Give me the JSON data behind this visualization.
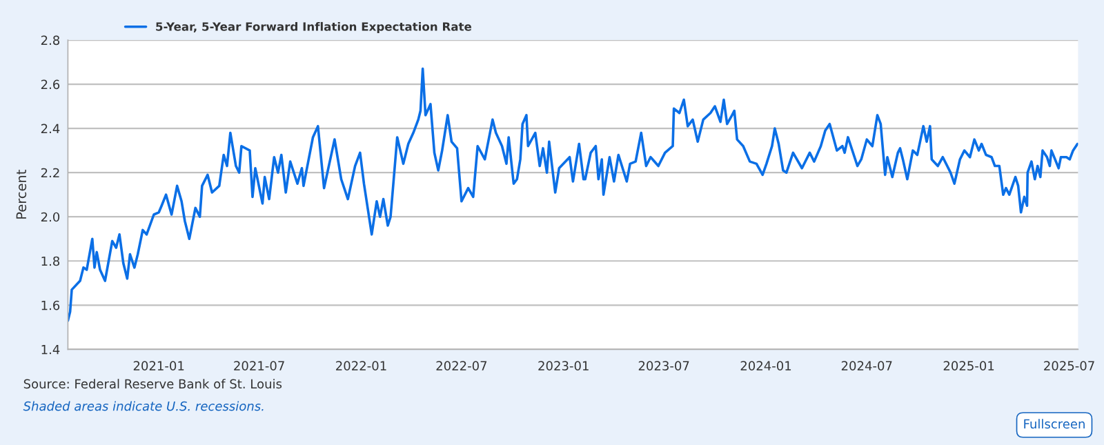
{
  "chart_data": {
    "type": "line",
    "ylabel": "Percent",
    "legend": "top left",
    "grid": "y",
    "line_style": "solid",
    "marker": "none",
    "xlim": [
      "2020-07-21",
      "2025-07-17"
    ],
    "xticks": [
      "2021-01",
      "2021-07",
      "2022-01",
      "2022-07",
      "2023-01",
      "2023-07",
      "2024-01",
      "2024-07",
      "2025-01",
      "2025-07"
    ],
    "ylim": [
      1.4,
      2.8
    ],
    "yticks": [
      1.4,
      1.6,
      1.8,
      {
        "value": 2,
        "label": "2.0"
      },
      2.2,
      2.4,
      2.6,
      2.8
    ],
    "annotations": [
      "Source: Federal Reserve Bank of St. Louis",
      "Shaded areas indicate U.S. recessions.",
      "Fullscreen"
    ],
    "series": [
      {
        "name": "5-Year, 5-Year Forward Inflation Expectation Rate",
        "color": "#0b6fe6",
        "x": [
          "2020-07-21",
          "2020-07-25",
          "2020-07-28",
          "2020-08-12",
          "2020-08-18",
          "2020-08-24",
          "2020-09-03",
          "2020-09-07",
          "2020-09-11",
          "2020-09-17",
          "2020-09-26",
          "2020-10-09",
          "2020-10-16",
          "2020-10-22",
          "2020-10-29",
          "2020-11-05",
          "2020-11-10",
          "2020-11-18",
          "2020-11-24",
          "2020-12-03",
          "2020-12-10",
          "2020-12-23",
          "2021-01-01",
          "2021-01-06",
          "2021-01-14",
          "2021-01-24",
          "2021-02-03",
          "2021-02-11",
          "2021-02-17",
          "2021-02-25",
          "2021-03-08",
          "2021-03-16",
          "2021-03-20",
          "2021-03-30",
          "2021-04-07",
          "2021-04-20",
          "2021-04-28",
          "2021-05-04",
          "2021-05-10",
          "2021-05-20",
          "2021-05-26",
          "2021-05-30",
          "2021-06-14",
          "2021-06-19",
          "2021-06-24",
          "2021-07-07",
          "2021-07-11",
          "2021-07-19",
          "2021-07-28",
          "2021-08-04",
          "2021-08-10",
          "2021-08-18",
          "2021-08-26",
          "2021-09-08",
          "2021-09-16",
          "2021-09-19",
          "2021-10-06",
          "2021-10-15",
          "2021-10-26",
          "2021-11-14",
          "2021-11-26",
          "2021-12-08",
          "2021-12-21",
          "2021-12-30",
          "2022-01-06",
          "2022-01-20",
          "2022-01-29",
          "2022-02-04",
          "2022-02-10",
          "2022-02-18",
          "2022-02-23",
          "2022-03-07",
          "2022-03-18",
          "2022-03-27",
          "2022-04-05",
          "2022-04-14",
          "2022-04-18",
          "2022-04-22",
          "2022-04-27",
          "2022-05-06",
          "2022-05-13",
          "2022-05-20",
          "2022-05-27",
          "2022-06-06",
          "2022-06-13",
          "2022-06-23",
          "2022-07-01",
          "2022-07-13",
          "2022-07-22",
          "2022-07-30",
          "2022-08-12",
          "2022-08-26",
          "2022-09-01",
          "2022-09-12",
          "2022-09-20",
          "2022-09-24",
          "2022-10-03",
          "2022-10-09",
          "2022-10-15",
          "2022-10-19",
          "2022-10-26",
          "2022-10-29",
          "2022-11-11",
          "2022-11-19",
          "2022-11-25",
          "2022-12-02",
          "2022-12-06",
          "2022-12-17",
          "2022-12-24",
          "2023-01-12",
          "2023-01-18",
          "2023-01-29",
          "2023-02-06",
          "2023-02-09",
          "2023-02-19",
          "2023-02-28",
          "2023-03-05",
          "2023-03-11",
          "2023-03-14",
          "2023-03-25",
          "2023-04-02",
          "2023-04-10",
          "2023-04-25",
          "2023-05-01",
          "2023-05-11",
          "2023-05-21",
          "2023-05-30",
          "2023-06-07",
          "2023-06-21",
          "2023-07-03",
          "2023-07-17",
          "2023-07-19",
          "2023-07-29",
          "2023-08-06",
          "2023-08-13",
          "2023-08-22",
          "2023-08-31",
          "2023-09-10",
          "2023-09-23",
          "2023-10-01",
          "2023-10-11",
          "2023-10-17",
          "2023-10-23",
          "2023-11-01",
          "2023-11-05",
          "2023-11-10",
          "2023-11-21",
          "2023-12-03",
          "2023-12-15",
          "2023-12-26",
          "2024-01-02",
          "2024-01-12",
          "2024-01-17",
          "2024-01-24",
          "2024-02-01",
          "2024-02-07",
          "2024-02-19",
          "2024-03-06",
          "2024-03-20",
          "2024-03-28",
          "2024-04-09",
          "2024-04-17",
          "2024-04-25",
          "2024-05-08",
          "2024-05-18",
          "2024-05-22",
          "2024-05-28",
          "2024-06-14",
          "2024-06-21",
          "2024-07-01",
          "2024-07-11",
          "2024-07-20",
          "2024-07-26",
          "2024-08-03",
          "2024-08-07",
          "2024-08-16",
          "2024-08-26",
          "2024-08-30",
          "2024-09-04",
          "2024-09-12",
          "2024-09-22",
          "2024-09-30",
          "2024-10-11",
          "2024-10-17",
          "2024-10-23",
          "2024-10-26",
          "2024-11-06",
          "2024-11-15",
          "2024-11-29",
          "2024-12-06",
          "2024-12-16",
          "2024-12-24",
          "2025-01-03",
          "2025-01-11",
          "2025-01-19",
          "2025-01-24",
          "2025-02-01",
          "2025-02-11",
          "2025-02-17",
          "2025-02-25",
          "2025-03-04",
          "2025-03-09",
          "2025-03-15",
          "2025-03-26",
          "2025-03-31",
          "2025-04-05",
          "2025-04-11",
          "2025-04-16",
          "2025-04-17",
          "2025-04-24",
          "2025-04-30",
          "2025-05-05",
          "2025-05-10",
          "2025-05-14",
          "2025-05-22",
          "2025-05-27",
          "2025-05-30",
          "2025-06-12",
          "2025-06-16",
          "2025-06-26",
          "2025-07-02",
          "2025-07-08",
          "2025-07-16"
        ],
        "values": [
          1.53,
          1.57,
          1.67,
          1.71,
          1.77,
          1.76,
          1.9,
          1.77,
          1.84,
          1.76,
          1.71,
          1.89,
          1.86,
          1.92,
          1.79,
          1.72,
          1.83,
          1.77,
          1.83,
          1.94,
          1.92,
          2.01,
          2.02,
          2.05,
          2.1,
          2.01,
          2.14,
          2.07,
          1.98,
          1.9,
          2.04,
          2.0,
          2.14,
          2.19,
          2.11,
          2.14,
          2.28,
          2.23,
          2.38,
          2.23,
          2.2,
          2.32,
          2.3,
          2.09,
          2.22,
          2.06,
          2.18,
          2.08,
          2.27,
          2.2,
          2.28,
          2.11,
          2.25,
          2.15,
          2.22,
          2.14,
          2.36,
          2.41,
          2.13,
          2.35,
          2.17,
          2.08,
          2.23,
          2.29,
          2.15,
          1.92,
          2.07,
          2.0,
          2.08,
          1.96,
          2.0,
          2.36,
          2.24,
          2.33,
          2.38,
          2.44,
          2.48,
          2.67,
          2.46,
          2.51,
          2.29,
          2.21,
          2.3,
          2.46,
          2.34,
          2.31,
          2.07,
          2.13,
          2.09,
          2.32,
          2.26,
          2.44,
          2.38,
          2.32,
          2.24,
          2.36,
          2.15,
          2.17,
          2.26,
          2.42,
          2.46,
          2.32,
          2.38,
          2.23,
          2.31,
          2.2,
          2.34,
          2.11,
          2.22,
          2.27,
          2.16,
          2.33,
          2.17,
          2.17,
          2.29,
          2.32,
          2.17,
          2.26,
          2.1,
          2.27,
          2.16,
          2.28,
          2.16,
          2.24,
          2.25,
          2.38,
          2.23,
          2.27,
          2.23,
          2.29,
          2.32,
          2.49,
          2.47,
          2.53,
          2.41,
          2.44,
          2.34,
          2.44,
          2.47,
          2.5,
          2.43,
          2.53,
          2.42,
          2.46,
          2.48,
          2.35,
          2.32,
          2.25,
          2.24,
          2.19,
          2.24,
          2.32,
          2.4,
          2.33,
          2.21,
          2.2,
          2.29,
          2.22,
          2.29,
          2.25,
          2.32,
          2.39,
          2.42,
          2.3,
          2.32,
          2.29,
          2.36,
          2.23,
          2.26,
          2.35,
          2.32,
          2.46,
          2.42,
          2.19,
          2.27,
          2.18,
          2.29,
          2.31,
          2.26,
          2.17,
          2.3,
          2.28,
          2.41,
          2.34,
          2.41,
          2.26,
          2.23,
          2.27,
          2.2,
          2.15,
          2.26,
          2.3,
          2.27,
          2.35,
          2.3,
          2.33,
          2.28,
          2.27,
          2.23,
          2.23,
          2.1,
          2.13,
          2.1,
          2.18,
          2.14,
          2.02,
          2.09,
          2.05,
          2.2,
          2.25,
          2.17,
          2.23,
          2.18,
          2.3,
          2.27,
          2.23,
          2.3,
          2.22,
          2.27,
          2.27,
          2.26,
          2.3,
          2.33
        ]
      }
    ]
  }
}
